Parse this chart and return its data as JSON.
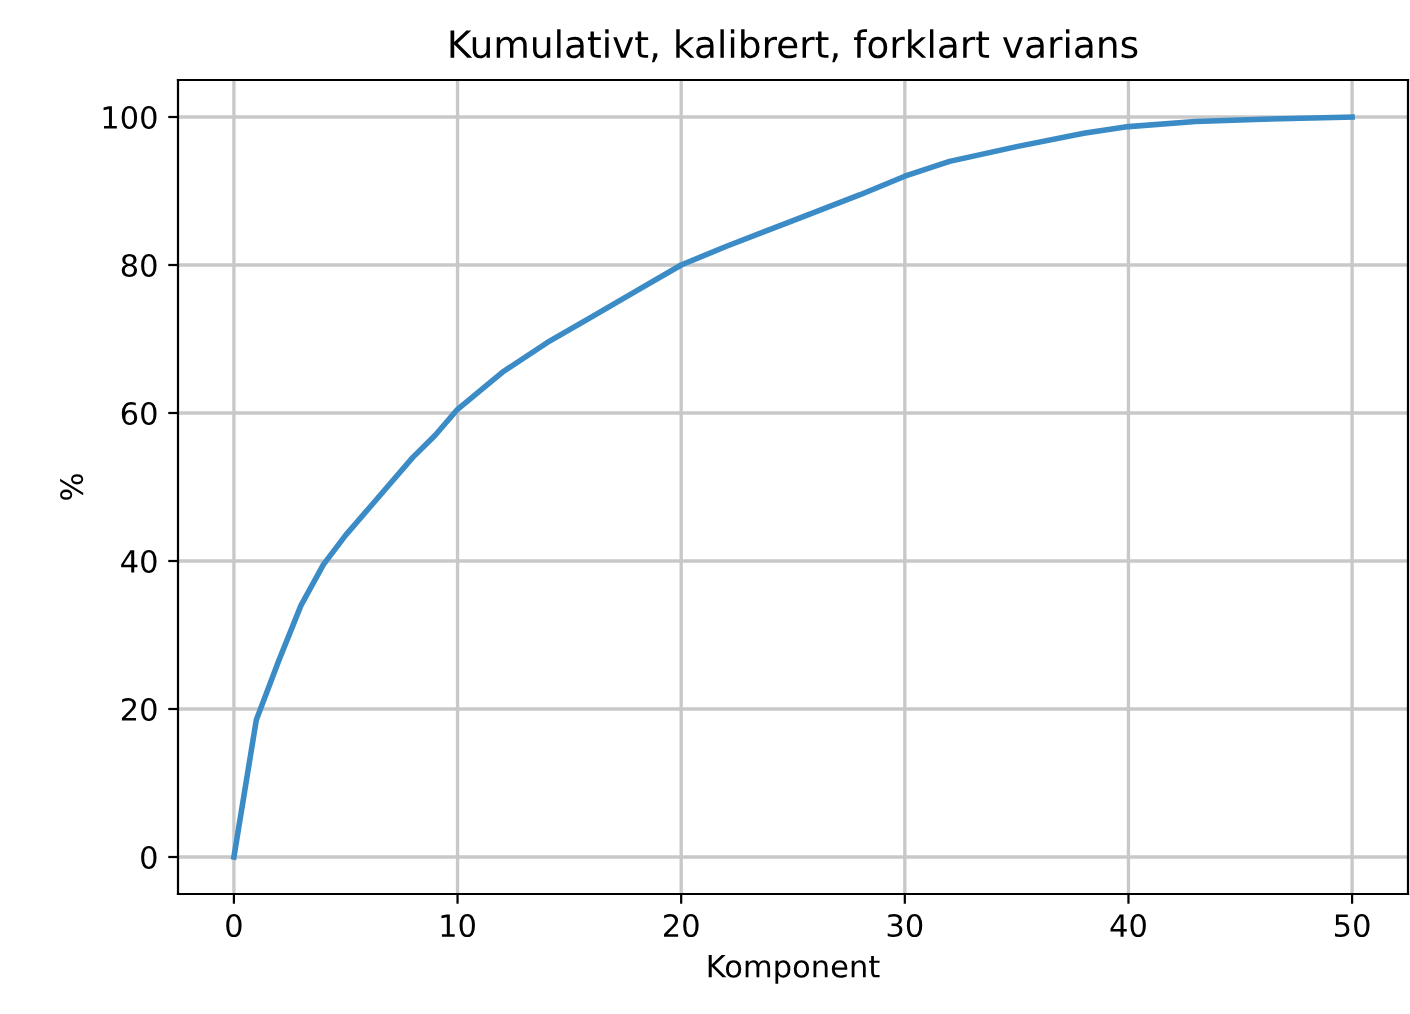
{
  "chart_data": {
    "type": "line",
    "title": "Kumulativt, kalibrert, forklart varians",
    "xlabel": "Komponent",
    "ylabel": "%",
    "x": [
      0,
      1,
      2,
      3,
      4,
      5,
      6,
      7,
      8,
      9,
      10,
      12,
      14,
      16,
      18,
      20,
      22,
      25,
      28,
      30,
      32,
      35,
      38,
      40,
      43,
      46,
      50
    ],
    "series": [
      {
        "color": "#3b8bc6",
        "values": [
          0,
          18.5,
          26.5,
          34,
          39.5,
          43.5,
          47,
          50.5,
          54,
          57,
          60.5,
          65.5,
          69.5,
          73,
          76.5,
          80,
          82.5,
          86,
          89.5,
          92,
          94,
          96,
          97.8,
          98.7,
          99.4,
          99.7,
          100
        ]
      }
    ],
    "xlim": [
      -2.5,
      52.5
    ],
    "ylim": [
      -5,
      105
    ],
    "xticks": [
      0,
      10,
      20,
      30,
      40,
      50
    ],
    "yticks": [
      0,
      20,
      40,
      60,
      80,
      100
    ],
    "grid": true,
    "legend": false,
    "marker": "none",
    "line_style": "solid"
  }
}
